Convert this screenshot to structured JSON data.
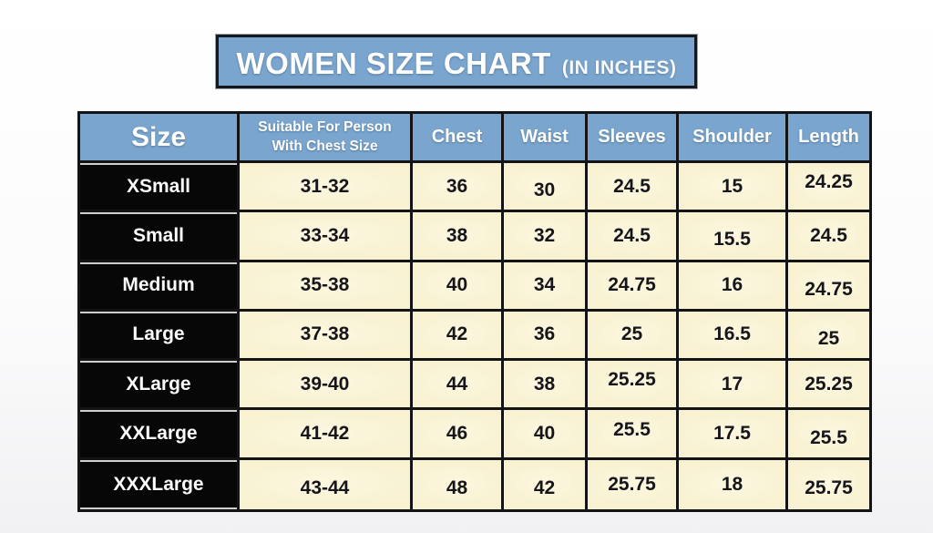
{
  "banner": {
    "title": "WOMEN SIZE CHART",
    "suffix": "(IN INCHES)"
  },
  "colors": {
    "header_blue": "#7aa5ce",
    "cell_cream": "#f8f2d2",
    "size_black": "#070708",
    "border_black": "#141417",
    "text_white": "#ffffff"
  },
  "table": {
    "headers": {
      "size": "Size",
      "suitable_line1": "Suitable For Person",
      "suitable_line2": "With Chest Size",
      "chest": "Chest",
      "waist": "Waist",
      "sleeves": "Sleeves",
      "shoulder": "Shoulder",
      "length": "Length"
    },
    "rows": [
      {
        "size": "XSmall",
        "suitable": "31-32",
        "chest": "36",
        "waist": "30",
        "sleeves": "24.5",
        "shoulder": "15",
        "length": "24.25"
      },
      {
        "size": "Small",
        "suitable": "33-34",
        "chest": "38",
        "waist": "32",
        "sleeves": "24.5",
        "shoulder": "15.5",
        "length": "24.5"
      },
      {
        "size": "Medium",
        "suitable": "35-38",
        "chest": "40",
        "waist": "34",
        "sleeves": "24.75",
        "shoulder": "16",
        "length": "24.75"
      },
      {
        "size": "Large",
        "suitable": "37-38",
        "chest": "42",
        "waist": "36",
        "sleeves": "25",
        "shoulder": "16.5",
        "length": "25"
      },
      {
        "size": "XLarge",
        "suitable": "39-40",
        "chest": "44",
        "waist": "38",
        "sleeves": "25.25",
        "shoulder": "17",
        "length": "25.25"
      },
      {
        "size": "XXLarge",
        "suitable": "41-42",
        "chest": "46",
        "waist": "40",
        "sleeves": "25.5",
        "shoulder": "17.5",
        "length": "25.5"
      },
      {
        "size": "XXXLarge",
        "suitable": "43-44",
        "chest": "48",
        "waist": "42",
        "sleeves": "25.75",
        "shoulder": "18",
        "length": "25.75"
      }
    ]
  }
}
